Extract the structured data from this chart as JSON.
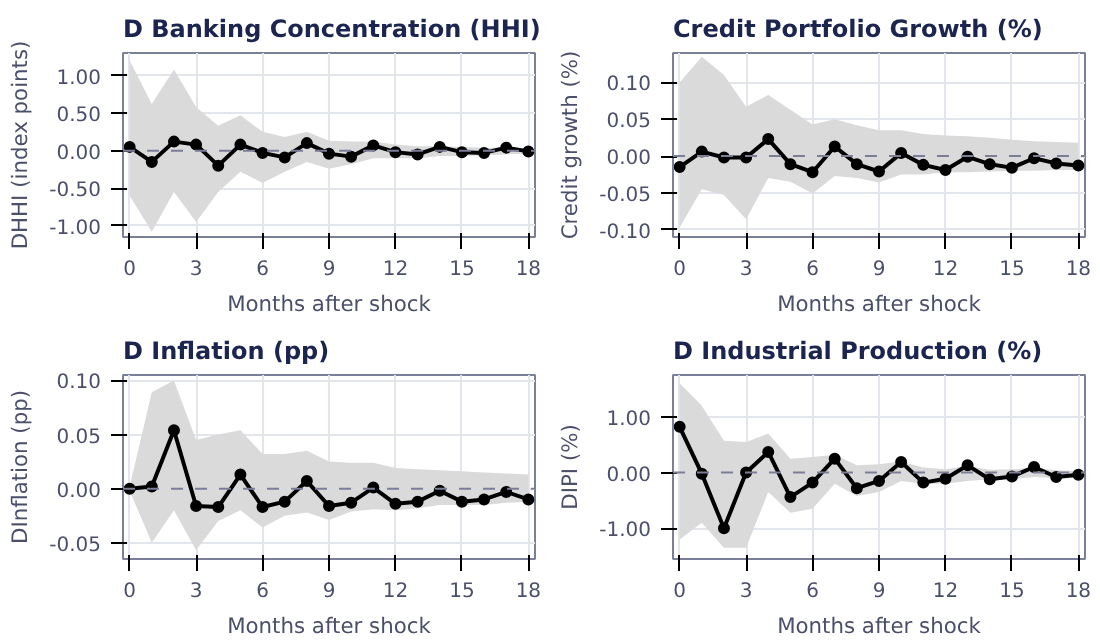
{
  "chart_data": [
    {
      "type": "line",
      "title": "D Banking Concentration (HHI)",
      "xlabel": "Months after shock",
      "ylabel": "DHHI (index points)",
      "x": [
        0,
        1,
        2,
        3,
        4,
        5,
        6,
        7,
        8,
        9,
        10,
        11,
        12,
        13,
        14,
        15,
        16,
        17,
        18
      ],
      "xlim": [
        -0.3,
        18.3
      ],
      "xticks": [
        0,
        3,
        6,
        9,
        12,
        15,
        18
      ],
      "ylim": [
        -1.15,
        1.3
      ],
      "yticks": [
        {
          "value": -1,
          "label": "-1.00"
        },
        {
          "value": -0.5,
          "label": "-0.50"
        },
        {
          "value": 0,
          "label": "0.00"
        },
        {
          "value": 0.5,
          "label": "0.50"
        },
        {
          "value": 1,
          "label": "1.00"
        }
      ],
      "grid": true,
      "marker": "circle",
      "line_style": "solid",
      "ref_lines": [
        {
          "axis": "y",
          "value": 0,
          "label": null,
          "color": "#7a7f96",
          "line_style": "dashed"
        }
      ],
      "series": [
        {
          "color": "#000000",
          "values": [
            0.05,
            -0.15,
            0.12,
            0.08,
            -0.2,
            0.08,
            -0.03,
            -0.09,
            0.1,
            -0.04,
            -0.08,
            0.07,
            -0.02,
            -0.05,
            0.05,
            -0.02,
            -0.03,
            0.04,
            -0.01
          ],
          "upper": [
            1.2,
            0.62,
            1.08,
            0.58,
            0.33,
            0.47,
            0.25,
            0.18,
            0.25,
            0.13,
            0.12,
            0.12,
            0.08,
            0.06,
            0.06,
            0.05,
            0.04,
            0.04,
            0.03
          ],
          "lower": [
            -0.6,
            -1.08,
            -0.55,
            -0.95,
            -0.55,
            -0.28,
            -0.43,
            -0.28,
            -0.15,
            -0.24,
            -0.18,
            -0.1,
            -0.1,
            -0.1,
            -0.07,
            -0.07,
            -0.06,
            -0.05,
            -0.04
          ]
        }
      ]
    },
    {
      "type": "line",
      "title": "Credit Portfolio Growth (%)",
      "xlabel": "Months after shock",
      "ylabel": "Credit growth (%)",
      "x": [
        0,
        1,
        2,
        3,
        4,
        5,
        6,
        7,
        8,
        9,
        10,
        11,
        12,
        13,
        14,
        15,
        16,
        17,
        18
      ],
      "xlim": [
        -0.3,
        18.3
      ],
      "xticks": [
        0,
        3,
        6,
        9,
        12,
        15,
        18
      ],
      "ylim": [
        -0.11,
        0.14
      ],
      "yticks": [
        {
          "value": -0.1,
          "label": "-0.10"
        },
        {
          "value": -0.05,
          "label": "-0.05"
        },
        {
          "value": 0,
          "label": "0.00"
        },
        {
          "value": 0.05,
          "label": "0.05"
        },
        {
          "value": 0.1,
          "label": "0.10"
        }
      ],
      "grid": true,
      "marker": "circle",
      "line_style": "solid",
      "ref_lines": [
        {
          "axis": "y",
          "value": 0,
          "label": null,
          "color": "#7a7f96",
          "line_style": "dashed"
        }
      ],
      "series": [
        {
          "color": "#000000",
          "values": [
            -0.015,
            0.006,
            -0.002,
            -0.002,
            0.023,
            -0.011,
            -0.022,
            0.013,
            -0.011,
            -0.021,
            0.004,
            -0.012,
            -0.019,
            -0.001,
            -0.011,
            -0.016,
            -0.003,
            -0.01,
            -0.013
          ],
          "upper": [
            0.1,
            0.135,
            0.11,
            0.067,
            0.083,
            0.063,
            0.043,
            0.05,
            0.042,
            0.035,
            0.035,
            0.03,
            0.028,
            0.027,
            0.025,
            0.022,
            0.02,
            0.019,
            0.018
          ],
          "lower": [
            -0.097,
            -0.045,
            -0.053,
            -0.086,
            -0.03,
            -0.035,
            -0.051,
            -0.027,
            -0.03,
            -0.036,
            -0.025,
            -0.025,
            -0.022,
            -0.022,
            -0.021,
            -0.02,
            -0.02,
            -0.019,
            -0.019
          ]
        }
      ]
    },
    {
      "type": "line",
      "title": "D Inflation (pp)",
      "xlabel": "Months after shock",
      "ylabel": "DInflation (pp)",
      "x": [
        0,
        1,
        2,
        3,
        4,
        5,
        6,
        7,
        8,
        9,
        10,
        11,
        12,
        13,
        14,
        15,
        16,
        17,
        18
      ],
      "xlim": [
        -0.3,
        18.3
      ],
      "xticks": [
        0,
        3,
        6,
        9,
        12,
        15,
        18
      ],
      "ylim": [
        -0.065,
        0.105
      ],
      "yticks": [
        {
          "value": -0.05,
          "label": "-0.05"
        },
        {
          "value": 0,
          "label": "0.00"
        },
        {
          "value": 0.05,
          "label": "0.05"
        },
        {
          "value": 0.1,
          "label": "0.10"
        }
      ],
      "grid": true,
      "marker": "circle",
      "line_style": "solid",
      "ref_lines": [
        {
          "axis": "y",
          "value": 0,
          "label": null,
          "color": "#7a7f96",
          "line_style": "dashed"
        }
      ],
      "series": [
        {
          "color": "#000000",
          "values": [
            0,
            0.002,
            0.054,
            -0.016,
            -0.017,
            0.013,
            -0.017,
            -0.012,
            0.007,
            -0.016,
            -0.013,
            0.001,
            -0.014,
            -0.012,
            -0.002,
            -0.012,
            -0.01,
            -0.003,
            -0.01
          ],
          "upper": [
            0.002,
            0.089,
            0.1,
            0.045,
            0.05,
            0.054,
            0.032,
            0.032,
            0.035,
            0.025,
            0.024,
            0.024,
            0.019,
            0.018,
            0.017,
            0.016,
            0.015,
            0.014,
            0.013
          ],
          "lower": [
            -0.002,
            -0.05,
            -0.02,
            -0.057,
            -0.03,
            -0.02,
            -0.036,
            -0.025,
            -0.022,
            -0.029,
            -0.021,
            -0.019,
            -0.02,
            -0.018,
            -0.015,
            -0.015,
            -0.015,
            -0.013,
            -0.012
          ]
        }
      ]
    },
    {
      "type": "line",
      "title": "D Industrial Production (%)",
      "xlabel": "Months after shock",
      "ylabel": "DIPI (%)",
      "x": [
        0,
        1,
        2,
        3,
        4,
        5,
        6,
        7,
        8,
        9,
        10,
        11,
        12,
        13,
        14,
        15,
        16,
        17,
        18
      ],
      "xlim": [
        -0.3,
        18.3
      ],
      "xticks": [
        0,
        3,
        6,
        9,
        12,
        15,
        18
      ],
      "ylim": [
        -1.55,
        1.75
      ],
      "yticks": [
        {
          "value": -1,
          "label": "-1.00"
        },
        {
          "value": 0,
          "label": "0.00"
        },
        {
          "value": 1,
          "label": "1.00"
        }
      ],
      "grid": true,
      "marker": "circle",
      "line_style": "solid",
      "ref_lines": [
        {
          "axis": "y",
          "value": 0,
          "label": null,
          "color": "#7a7f96",
          "line_style": "dashed"
        }
      ],
      "series": [
        {
          "color": "#000000",
          "values": [
            0.82,
            -0.02,
            -1.0,
            0.0,
            0.37,
            -0.44,
            -0.18,
            0.25,
            -0.28,
            -0.15,
            0.19,
            -0.18,
            -0.11,
            0.13,
            -0.12,
            -0.07,
            0.1,
            -0.08,
            -0.04
          ],
          "upper": [
            1.6,
            1.2,
            0.57,
            0.55,
            0.7,
            0.25,
            0.28,
            0.32,
            0.13,
            0.15,
            0.2,
            0.09,
            0.06,
            0.12,
            0.05,
            0.06,
            0.08,
            0.04,
            0.03
          ],
          "lower": [
            -1.2,
            -0.9,
            -1.35,
            -1.35,
            -0.35,
            -0.72,
            -0.65,
            -0.2,
            -0.42,
            -0.35,
            -0.15,
            -0.2,
            -0.2,
            -0.15,
            -0.12,
            -0.12,
            -0.08,
            -0.1,
            -0.1
          ]
        }
      ]
    }
  ]
}
